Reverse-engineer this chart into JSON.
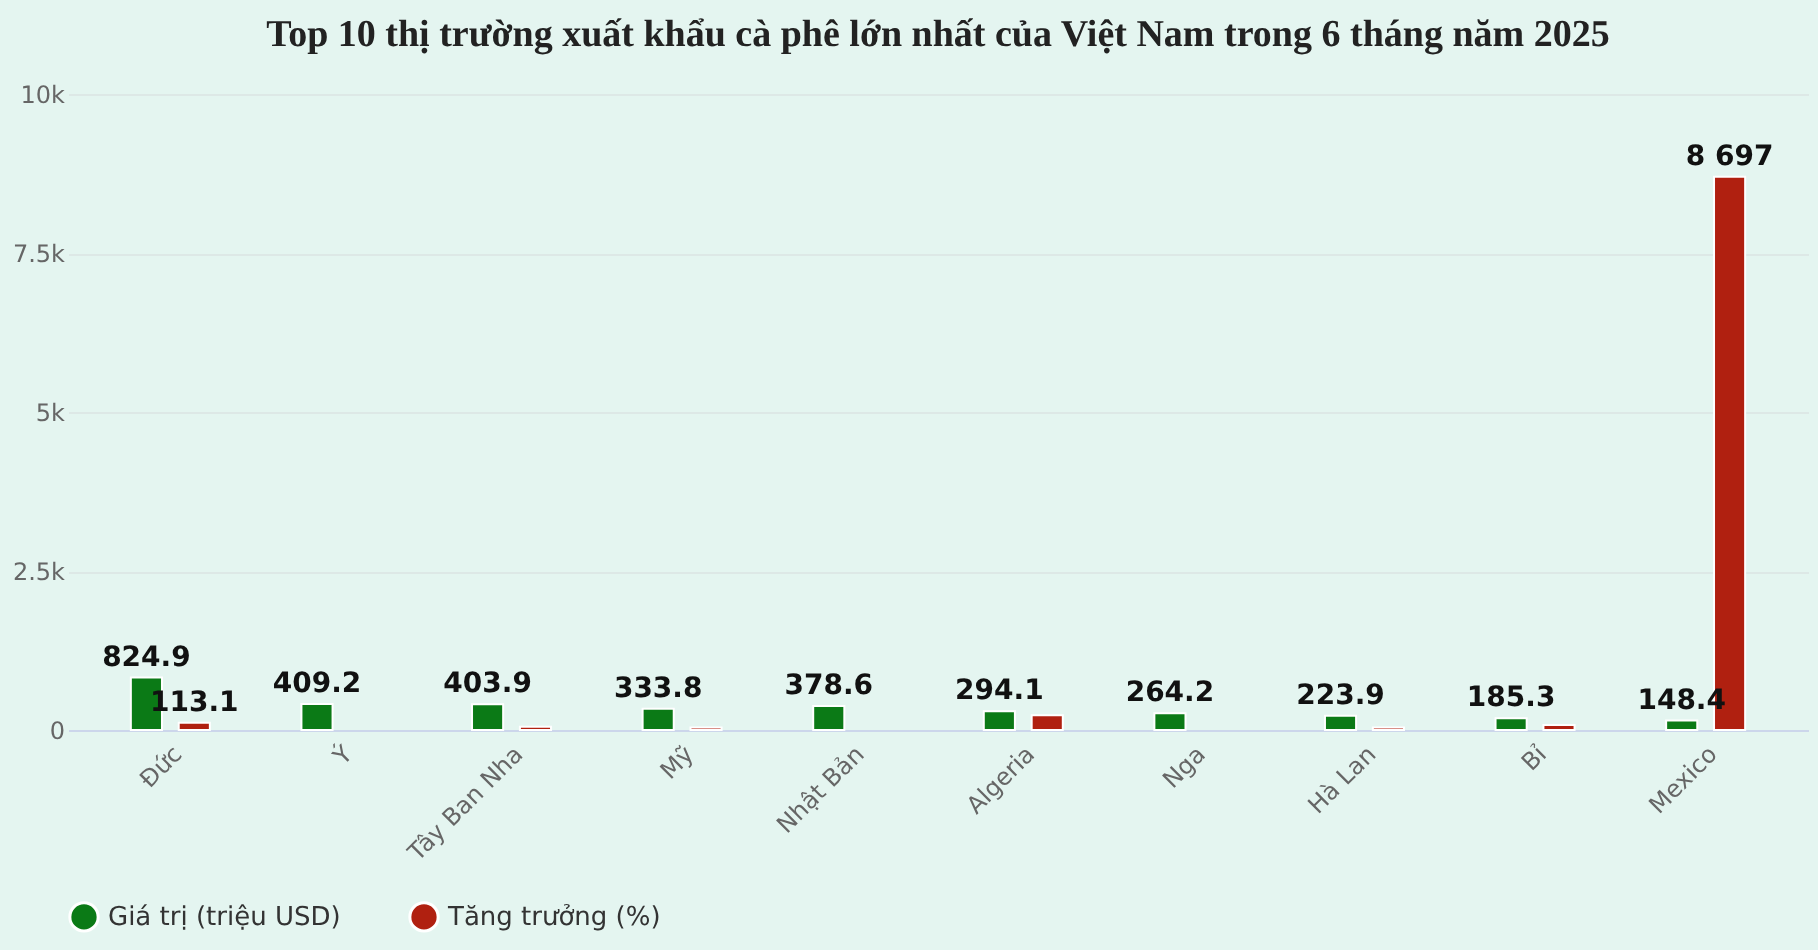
{
  "chart_data": {
    "type": "bar",
    "title": "Top 10 thị trường xuất khẩu cà phê lớn nhất của Việt Nam trong 6 tháng năm 2025",
    "categories": [
      "Đức",
      "Ý",
      "Tây Ban Nha",
      "Mỹ",
      "Nhật Bản",
      "Algeria",
      "Nga",
      "Hà Lan",
      "Bỉ",
      "Mexico"
    ],
    "series": [
      {
        "name": "Giá trị (triệu USD)",
        "color": "#0b7a16",
        "values": [
          824.9,
          409.2,
          403.9,
          333.8,
          378.6,
          294.1,
          264.2,
          223.9,
          185.3,
          148.4
        ],
        "value_labels": [
          "824.9",
          "409.2",
          "403.9",
          "333.8",
          "378.6",
          "294.1",
          "264.2",
          "223.9",
          "185.3",
          "148.4"
        ]
      },
      {
        "name": "Tăng trưởng (%)",
        "color": "#b02010",
        "values": [
          113.1,
          null,
          50,
          40,
          null,
          230,
          null,
          40,
          80,
          8697
        ],
        "value_labels": [
          "113.1",
          null,
          null,
          null,
          null,
          null,
          null,
          null,
          null,
          "8 697"
        ]
      }
    ],
    "ylim": [
      0,
      10000
    ],
    "yticks": [
      0,
      {
        "value": 2500,
        "label": "2.5k"
      },
      {
        "value": 5000,
        "label": "5k"
      },
      {
        "value": 7500,
        "label": "7.5k"
      },
      {
        "value": 10000,
        "label": "10k"
      }
    ],
    "grid": "y",
    "legend": "bottom"
  }
}
